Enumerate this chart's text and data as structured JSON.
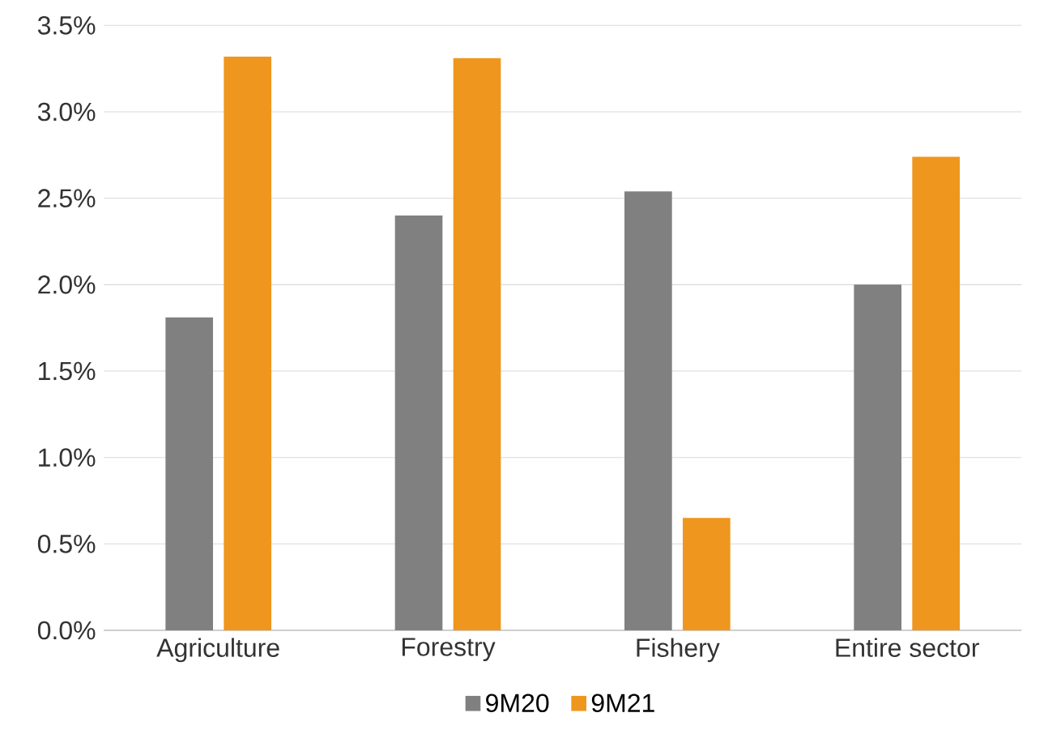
{
  "chart_data": {
    "type": "bar",
    "categories": [
      "Agriculture",
      "Forestry",
      "Fishery",
      "Entire sector"
    ],
    "series": [
      {
        "name": "9M20",
        "color": "#808080",
        "values": [
          1.81,
          2.4,
          2.54,
          2.0
        ]
      },
      {
        "name": "9M21",
        "color": "#ef961e",
        "values": [
          3.32,
          3.31,
          0.65,
          2.74
        ]
      }
    ],
    "ylim": [
      0,
      3.5
    ],
    "yticks": [
      {
        "value": 0,
        "label": "0.0%"
      },
      {
        "value": 0.5,
        "label": "0.5%"
      },
      {
        "value": 1,
        "label": "1.0%"
      },
      {
        "value": 1.5,
        "label": "1.5%"
      },
      {
        "value": 2,
        "label": "2.0%"
      },
      {
        "value": 2.5,
        "label": "2.5%"
      },
      {
        "value": 3,
        "label": "3.0%"
      },
      {
        "value": 3.5,
        "label": "3.5%"
      }
    ],
    "grid": "y",
    "legend": "bottom"
  }
}
